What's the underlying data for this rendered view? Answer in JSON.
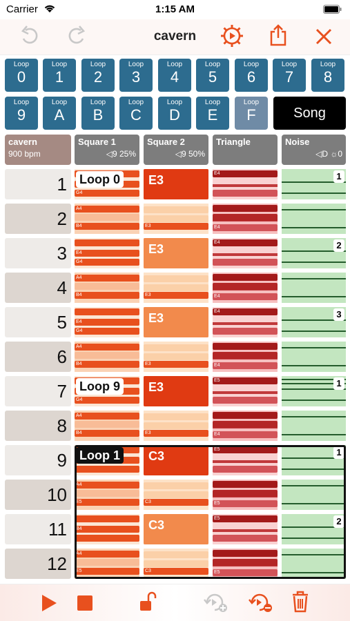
{
  "status": {
    "carrier": "Carrier",
    "time": "1:15 AM"
  },
  "toolbar": {
    "title": "cavern",
    "undo_icon": "undo-icon",
    "redo_icon": "redo-icon",
    "play_settings_icon": "play-gear-icon",
    "share_icon": "share-icon",
    "close_icon": "close-icon"
  },
  "loops": {
    "small_label": "Loop",
    "row1": [
      "0",
      "1",
      "2",
      "3",
      "4",
      "5",
      "6",
      "7",
      "8"
    ],
    "row2": [
      "9",
      "A",
      "B",
      "C",
      "D",
      "E",
      "F"
    ],
    "selected": "F",
    "song_label": "Song"
  },
  "headers": {
    "song_name": "cavern",
    "tempo": "900 bpm",
    "square1": {
      "name": "Square 1",
      "info": "◁9 25%"
    },
    "square2": {
      "name": "Square 2",
      "info": "◁9 50%"
    },
    "triangle": {
      "name": "Triangle",
      "info": ""
    },
    "noise": {
      "name": "Noise",
      "info": "◁D ☼0"
    }
  },
  "rows": [
    "1",
    "2",
    "3",
    "4",
    "5",
    "6",
    "7",
    "8",
    "9",
    "10",
    "11",
    "12"
  ],
  "tags": {
    "loop0": "Loop 0",
    "loop9": "Loop 9",
    "loop1": "Loop 1",
    "sq2_1": "E3",
    "sq2_3": "E3",
    "sq2_5": "E3",
    "sq2_7": "E3",
    "sq2_9": "C3",
    "sq2_11": "C3",
    "noise_1": "1",
    "noise_3": "2",
    "noise_5": "3",
    "noise_7": "1",
    "noise_9": "1",
    "noise_11": "2"
  },
  "notes": {
    "g4": "G4",
    "a4": "A4",
    "b4": "B4",
    "e4": "E4",
    "e3": "E3",
    "e5": "E5",
    "c3": "C3"
  },
  "colors": {
    "accent": "#e8501e",
    "loop_blue": "#2d6c8f",
    "noise_green": "#c3e6c0",
    "tri_pink": "#f7c6c6"
  },
  "bottom": {
    "play_icon": "play-icon",
    "stop_icon": "stop-icon",
    "lock_icon": "unlock-icon",
    "add_loop_icon": "add-loop-icon",
    "remove_loop_icon": "remove-loop-icon",
    "trash_icon": "trash-icon"
  }
}
